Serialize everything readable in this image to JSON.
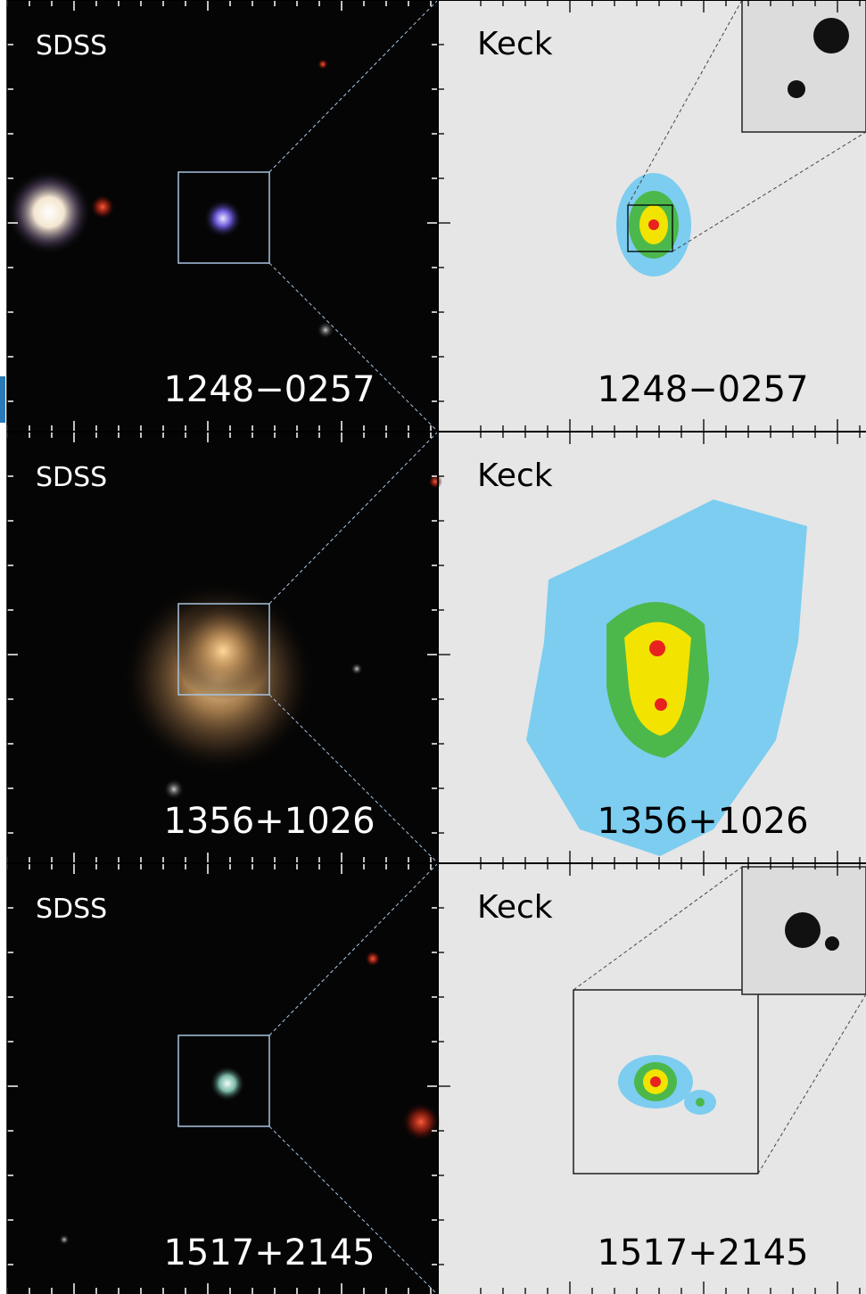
{
  "panels": [
    {
      "left_label": "SDSS",
      "right_label": "Keck",
      "name": "1248−0257"
    },
    {
      "left_label": "SDSS",
      "right_label": "Keck",
      "name": "1356+1026"
    },
    {
      "left_label": "SDSS",
      "right_label": "Keck",
      "name": "1517+2145"
    }
  ]
}
